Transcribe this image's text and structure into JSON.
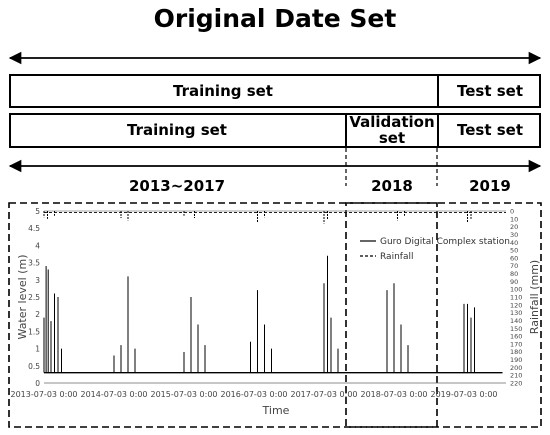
{
  "title": "Original Date Set",
  "row1": {
    "training": "Training set",
    "test": "Test set"
  },
  "row2": {
    "training": "Training set",
    "validation_line1": "Validation",
    "validation_line2": "set",
    "test": "Test set"
  },
  "periods": [
    "2013~2017",
    "2018",
    "2019"
  ],
  "chart_data": {
    "type": "line",
    "xlabel": "Time",
    "ylabel": "Water level (m)",
    "ylabel_right": "Rainfall (mm)",
    "x_ticks": [
      "2013-07-03 0:00",
      "2014-07-03 0:00",
      "2015-07-03 0:00",
      "2016-07-03 0:00",
      "2017-07-03 0:00",
      "2018-07-03 0:00",
      "2019-07-03 0:00"
    ],
    "y_ticks": [
      "0",
      "0.5",
      "1",
      "1.5",
      "2",
      "2.5",
      "3",
      "3.5",
      "4",
      "4.5",
      "5"
    ],
    "y2_ticks": [
      "0",
      "10",
      "20",
      "30",
      "40",
      "50",
      "60",
      "70",
      "80",
      "90",
      "100",
      "110",
      "120",
      "130",
      "140",
      "150",
      "160",
      "170",
      "180",
      "190",
      "200",
      "210",
      "220"
    ],
    "ylim": [
      0,
      5
    ],
    "y2lim": [
      0,
      220
    ],
    "y2_inverted": true,
    "series": [
      {
        "name": "Guro Digital Complex station",
        "style": "solid",
        "x": [
          2013.5,
          2013.53,
          2013.56,
          2013.6,
          2013.65,
          2013.7,
          2013.75,
          2014.5,
          2014.6,
          2014.7,
          2014.8,
          2015.5,
          2015.6,
          2015.7,
          2015.8,
          2016.45,
          2016.55,
          2016.65,
          2016.75,
          2017.5,
          2017.55,
          2017.6,
          2017.7,
          2018.4,
          2018.5,
          2018.6,
          2018.7,
          2019.5,
          2019.55,
          2019.6,
          2019.65
        ],
        "y": [
          1.9,
          3.4,
          3.3,
          1.8,
          2.6,
          2.5,
          1.0,
          0.8,
          1.1,
          3.1,
          1.0,
          0.9,
          2.5,
          1.7,
          1.1,
          1.2,
          2.7,
          1.7,
          1.0,
          2.9,
          3.7,
          1.9,
          1.0,
          2.7,
          2.9,
          1.7,
          1.1,
          2.3,
          2.3,
          1.9,
          2.2
        ]
      },
      {
        "name": "Rainfall",
        "style": "dashed",
        "x": [
          2013.5,
          2013.55,
          2013.65,
          2014.6,
          2014.7,
          2015.5,
          2015.65,
          2016.55,
          2016.65,
          2017.5,
          2017.55,
          2018.55,
          2018.65,
          2019.55,
          2019.6
        ],
        "y": [
          8,
          10,
          6,
          9,
          12,
          6,
          9,
          14,
          8,
          16,
          11,
          12,
          6,
          14,
          10
        ]
      }
    ]
  }
}
